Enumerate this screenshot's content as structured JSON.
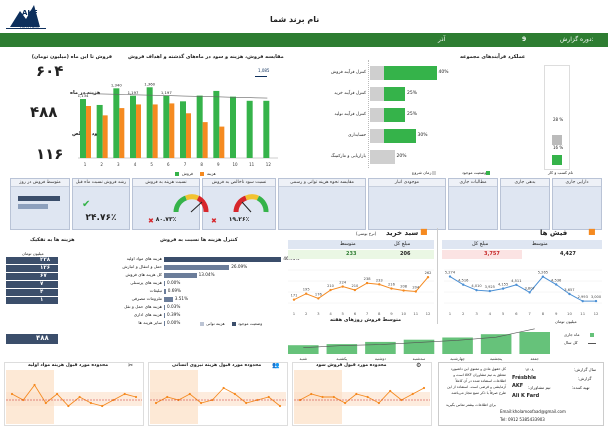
{
  "brand": {
    "name": "AKF",
    "sub": "Ali K Fard"
  },
  "header": {
    "title": "نام برند شما"
  },
  "period": {
    "label": "دوره گزارش:",
    "month_num": "9",
    "month": "آذر"
  },
  "kpis_left": {
    "sales_ytd_label": "فروش تا این ماه (میلیون تومان)",
    "sales_ytd": "۶۰۴",
    "cost_label": "هزینه در ماه",
    "cost": "۴۸۸",
    "profit_label": "سود ناخالص",
    "profit": "۱۱۶"
  },
  "main_chart": {
    "title": "مقایسه فروش، هزینه و سود در ماه‌های گذشته و اهداف فروش",
    "top_label": "1,085",
    "legend_sales": "فروش",
    "legend_cost": "هزینه"
  },
  "chart_data": [
    {
      "type": "bar",
      "title": "مقایسه فروش، هزینه و سود در ماه‌های گذشته و اهداف فروش",
      "categories": [
        "1",
        "2",
        "3",
        "4",
        "5",
        "6",
        "7",
        "8",
        "9",
        "10",
        "11",
        "12"
      ],
      "series": [
        {
          "name": "فروش",
          "values": [
            1134,
            1020,
            1340,
            1197,
            1360,
            1197,
            1090,
            1200,
            1290,
            1180,
            1100,
            1100
          ]
        },
        {
          "name": "هزینه",
          "values": [
            1000,
            820,
            960,
            1030,
            1030,
            1050,
            860,
            690,
            604,
            0,
            0,
            0
          ]
        }
      ],
      "data_labels": [
        "1,134",
        "1,340",
        "1,197",
        "1,360",
        "1,197"
      ]
    }
  ],
  "units_panel": {
    "title": "عملکرد فرآیندهای مجموعه",
    "rows": [
      {
        "label": "کنترل فرآیند فروش",
        "pct": "40%",
        "value": 0.4
      },
      {
        "label": "کنترل فرآیند خرید",
        "pct": "25%",
        "value": 0.25
      },
      {
        "label": "کنترل فرآیند تولید",
        "pct": "25%",
        "value": 0.25
      },
      {
        "label": "حسابداری",
        "pct": "30%",
        "value": 0.3
      },
      {
        "label": "بازاریابی و مارکتینگ",
        "pct": "20%",
        "value": 0.2
      }
    ],
    "legend_current": "وضعیت موجود",
    "legend_start": "زمان شروع",
    "stack_top": "28 %",
    "stack_bottom": "16 %",
    "stack_caption": "نام کسب و کار"
  },
  "kpi_row": [
    {
      "label": "متوسط فروش در روز",
      "value": ""
    },
    {
      "label": "رشد فروش نسبت ماه قبل",
      "value": "۲۴.۷۶٪"
    },
    {
      "label": "نسبت هزینه به فروش",
      "value": "۸۰.۷۳٪"
    },
    {
      "label": "نسبت سود ناخالص به فروش",
      "value": "۱۹.۲۶٪"
    },
    {
      "label": "مقایسه نحوه هزینه توانی و رسمی",
      "value": ""
    },
    {
      "label": "موجودی انبار",
      "value": ""
    },
    {
      "label": "مطالبات جاری",
      "value": ""
    },
    {
      "label": "بدهی جاری",
      "value": ""
    },
    {
      "label": "دارایی جاری",
      "value": ""
    }
  ],
  "cost_panel": {
    "title": "کنترل هزینه ها نسبت به فروش",
    "side_title": "هزینه ها به تفکیک",
    "side_unit": "میلیون تومان",
    "items": [
      {
        "label": "هزینه های مواد اولیه",
        "pct": "46.95%",
        "amount": "۲۳۸",
        "value": 0.4695
      },
      {
        "label": "حمل و انتقال و انبارش",
        "pct": "26.09%",
        "amount": "۱۲۶",
        "value": 0.2609
      },
      {
        "label": "کل هزینه های فروش",
        "pct": "13.04%",
        "amount": "۶۷",
        "value": 0.1304
      },
      {
        "label": "هزینه های پرسنلی",
        "pct": "0.00%",
        "amount": "۷",
        "value": 0.0
      },
      {
        "label": "تبلیغات",
        "pct": "0.69%",
        "amount": "۴",
        "value": 0.0069
      },
      {
        "label": "ملزومات مصرفی",
        "pct": "3.51%",
        "amount": "۱",
        "value": 0.0351
      },
      {
        "label": "هزینه های حمل و نقل",
        "pct": "0.03%",
        "amount": "",
        "value": 0.0003
      },
      {
        "label": "هزینه های اداری",
        "pct": "0.39%",
        "amount": "",
        "value": 0.0039
      },
      {
        "label": "سایر هزینه ها",
        "pct": "0.00%",
        "amount": "",
        "value": 0.0
      }
    ],
    "legend_a": "هزینه توانی",
    "legend_b": "وضعیت موجود",
    "total": "۴۸۸"
  },
  "purchase_panel": {
    "title": "سبد خرید",
    "sub": "(نرخ بوسی)",
    "col_total": "مبلغ کل",
    "col_avg": "متوسط",
    "val_total": "233",
    "val_avg": "206",
    "values": [
      171,
      195,
      176,
      210,
      224,
      210,
      238,
      233,
      216,
      208,
      204,
      262
    ],
    "x": [
      "1",
      "2",
      "3",
      "4",
      "5",
      "6",
      "7",
      "8",
      "9",
      "10",
      "11",
      "12"
    ]
  },
  "invoice_panel": {
    "title": "فیش ها",
    "col_total": "مبلغ کل",
    "col_avg": "متوسط",
    "val_total": "3,757",
    "val_avg": "4,427",
    "values": [
      5274,
      4516,
      4010,
      3925,
      4155,
      4511,
      3807,
      5265,
      4536,
      3657,
      2993,
      3000
    ],
    "x": [
      "1",
      "2",
      "3",
      "4",
      "5",
      "6",
      "7",
      "8",
      "9",
      "10",
      "11",
      "12"
    ]
  },
  "weekly": {
    "title": "متوسط فروش روزهای هفته",
    "unit": "میلیون تومان",
    "legend_a": "ماه جاری",
    "legend_b": "کل سال",
    "days": [
      "شنبه",
      "یکشنبه",
      "دوشنبه",
      "سه‌شنبه",
      "چهارشنبه",
      "پنجشنبه",
      "جمعه"
    ],
    "values": [
      8,
      9,
      11,
      13,
      15,
      18,
      20
    ],
    "line": [
      6,
      8,
      9,
      11,
      13,
      16,
      24
    ]
  },
  "bottom_charts": [
    {
      "title": "محدوده مورد قبول هزینه مواد اولیه",
      "values": [
        18,
        16,
        21,
        15,
        18,
        14,
        17,
        15,
        14,
        16,
        18,
        17
      ],
      "icon": "✂"
    },
    {
      "title": "محدوده مورد قبول هزینه نیروی انسانی",
      "values": [
        15,
        17,
        16,
        18,
        15,
        16,
        20,
        18,
        15,
        16,
        17,
        14
      ],
      "icon": "👥"
    },
    {
      "title": "محدوده مورد قبول فروش سود",
      "values": [
        16,
        18,
        17,
        17,
        15,
        18,
        17,
        15,
        19,
        16,
        18,
        20
      ],
      "icon": "⚙"
    }
  ],
  "footer": {
    "note": "کل حقوق مادی و معنوی این داشبورد متعلق به تیم مشاوران AKF است و اطلاعات استفاده شده در آن کاملاً آزمایشی و فرضی است. استفاده از این طرح صرفاً با ذکر منبع مجاز می‌باشد.",
    "tiny_note": "برای اطلاعات بیشتر تماس بگیرید",
    "year_label": "سال گزارش:",
    "year": "۱۴۰۸",
    "creator_label": "گزارش:",
    "creator": "Frésbhle",
    "prep_label": "تهیه کننده:",
    "prep": "Ali K Fard",
    "adviser_label": "تیم مشاوران:",
    "adviser": "AKF",
    "email": "Email:kholamoofaad@gmail.com",
    "tel": "Tel: 0912 5385433903"
  }
}
